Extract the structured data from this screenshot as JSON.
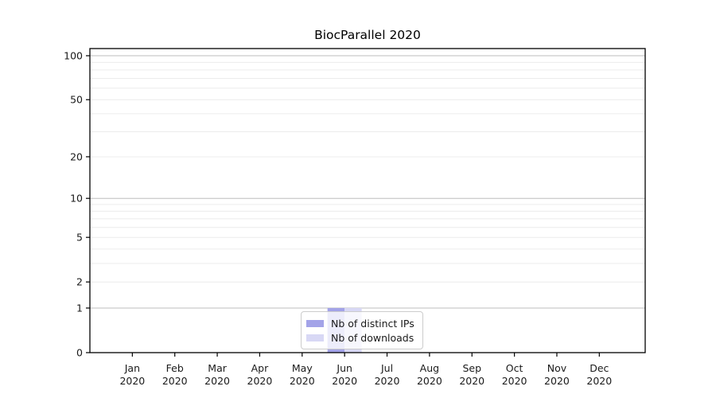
{
  "chart_data": {
    "type": "bar",
    "title": "BiocParallel 2020",
    "categories": [
      "Jan 2020",
      "Feb 2020",
      "Mar 2020",
      "Apr 2020",
      "May 2020",
      "Jun 2020",
      "Jul 2020",
      "Aug 2020",
      "Sep 2020",
      "Oct 2020",
      "Nov 2020",
      "Dec 2020"
    ],
    "x_ticks": [
      {
        "month": "Jan",
        "year": "2020"
      },
      {
        "month": "Feb",
        "year": "2020"
      },
      {
        "month": "Mar",
        "year": "2020"
      },
      {
        "month": "Apr",
        "year": "2020"
      },
      {
        "month": "May",
        "year": "2020"
      },
      {
        "month": "Jun",
        "year": "2020"
      },
      {
        "month": "Jul",
        "year": "2020"
      },
      {
        "month": "Aug",
        "year": "2020"
      },
      {
        "month": "Sep",
        "year": "2020"
      },
      {
        "month": "Oct",
        "year": "2020"
      },
      {
        "month": "Nov",
        "year": "2020"
      },
      {
        "month": "Dec",
        "year": "2020"
      }
    ],
    "series": [
      {
        "name": "Nb of distinct IPs",
        "color": "#a3a3e8",
        "values": [
          0,
          0,
          0,
          0,
          0,
          1,
          0,
          0,
          0,
          0,
          0,
          0
        ]
      },
      {
        "name": "Nb of downloads",
        "color": "#d8d8f5",
        "values": [
          0,
          0,
          0,
          0,
          0,
          1,
          0,
          0,
          0,
          0,
          0,
          0
        ]
      }
    ],
    "y_axis": {
      "scale": "log1p",
      "range": [
        0,
        100
      ],
      "ticks": [
        0,
        1,
        2,
        5,
        10,
        20,
        50,
        100
      ],
      "major_gridlines": [
        1,
        10,
        100
      ],
      "minor_gridlines": [
        2,
        3,
        4,
        5,
        6,
        7,
        8,
        9,
        20,
        30,
        40,
        50,
        60,
        70,
        80,
        90
      ]
    },
    "grid": true,
    "legend_position": "bottom-center",
    "colors": {
      "major_grid": "#bdbdbd",
      "minor_grid": "#ececec",
      "axis": "#000000",
      "text": "#1a1a1a"
    }
  }
}
